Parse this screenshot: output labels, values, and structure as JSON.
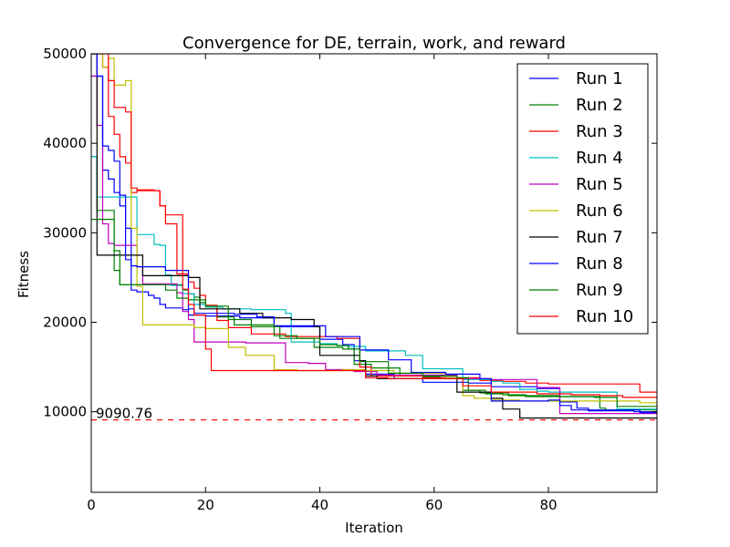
{
  "chart_data": {
    "type": "line",
    "title": "Convergence for DE, terrain, work, and reward",
    "xlabel": "Iteration",
    "ylabel": "Fitness",
    "xlim": [
      0,
      99
    ],
    "ylim": [
      1000,
      50000
    ],
    "xticks": [
      0,
      20,
      40,
      60,
      80
    ],
    "yticks": [
      10000,
      20000,
      30000,
      40000,
      50000
    ],
    "grid": false,
    "legend_position": "top-right",
    "reference_line": {
      "value": 9090.76,
      "label": "9090.76",
      "color": "#ff0000",
      "style": "dashed"
    },
    "series": [
      {
        "name": "Run 1",
        "color": "#0000ff",
        "points": [
          [
            0,
            47500
          ],
          [
            1,
            47500
          ],
          [
            2,
            37000
          ],
          [
            3,
            36000
          ],
          [
            4,
            34500
          ],
          [
            5,
            33000
          ],
          [
            6,
            30500
          ],
          [
            7,
            23600
          ],
          [
            8,
            23400
          ],
          [
            9,
            23400
          ],
          [
            10,
            23000
          ],
          [
            11,
            22700
          ],
          [
            12,
            22000
          ],
          [
            13,
            21600
          ],
          [
            16,
            21400
          ],
          [
            17,
            20800
          ],
          [
            20,
            20700
          ],
          [
            26,
            20500
          ],
          [
            32,
            19500
          ],
          [
            40,
            18100
          ],
          [
            44,
            17500
          ],
          [
            46,
            15700
          ],
          [
            48,
            14200
          ],
          [
            53,
            13700
          ],
          [
            58,
            13300
          ],
          [
            66,
            13200
          ],
          [
            70,
            12800
          ],
          [
            78,
            12600
          ],
          [
            82,
            11100
          ],
          [
            85,
            10400
          ],
          [
            87,
            10100
          ],
          [
            95,
            10000
          ],
          [
            99,
            10000
          ]
        ]
      },
      {
        "name": "Run 2",
        "color": "#008000",
        "points": [
          [
            0,
            38500
          ],
          [
            1,
            32500
          ],
          [
            4,
            25800
          ],
          [
            5,
            24200
          ],
          [
            16,
            23600
          ],
          [
            17,
            23200
          ],
          [
            18,
            22800
          ],
          [
            19,
            22200
          ],
          [
            20,
            21700
          ],
          [
            22,
            20600
          ],
          [
            25,
            19700
          ],
          [
            28,
            19500
          ],
          [
            33,
            18200
          ],
          [
            39,
            17200
          ],
          [
            44,
            17000
          ],
          [
            46,
            15300
          ],
          [
            49,
            14900
          ],
          [
            54,
            14000
          ],
          [
            58,
            13900
          ],
          [
            61,
            13800
          ],
          [
            63,
            13700
          ],
          [
            65,
            12400
          ],
          [
            68,
            12100
          ],
          [
            73,
            11800
          ],
          [
            82,
            11700
          ],
          [
            89,
            10400
          ],
          [
            90,
            10200
          ],
          [
            99,
            10200
          ]
        ]
      },
      {
        "name": "Run 3",
        "color": "#ff0000",
        "points": [
          [
            0,
            50000
          ],
          [
            2,
            48500
          ],
          [
            3,
            43000
          ],
          [
            4,
            41000
          ],
          [
            5,
            38500
          ],
          [
            6,
            37800
          ],
          [
            7,
            34500
          ],
          [
            8,
            34700
          ],
          [
            12,
            33000
          ],
          [
            13,
            31000
          ],
          [
            15,
            25400
          ],
          [
            17,
            24500
          ],
          [
            18,
            23800
          ],
          [
            19,
            23000
          ],
          [
            20,
            21900
          ],
          [
            22,
            20200
          ],
          [
            24,
            19400
          ],
          [
            28,
            18700
          ],
          [
            34,
            18400
          ],
          [
            43,
            18200
          ],
          [
            47,
            15000
          ],
          [
            49,
            14000
          ],
          [
            58,
            13800
          ],
          [
            68,
            13500
          ],
          [
            72,
            13400
          ],
          [
            76,
            13200
          ],
          [
            80,
            13100
          ],
          [
            96,
            12200
          ],
          [
            99,
            12200
          ]
        ]
      },
      {
        "name": "Run 4",
        "color": "#00bfbf",
        "points": [
          [
            0,
            38500
          ],
          [
            1,
            34000
          ],
          [
            7,
            34000
          ],
          [
            8,
            29800
          ],
          [
            10,
            29800
          ],
          [
            11,
            28700
          ],
          [
            12,
            28600
          ],
          [
            13,
            25300
          ],
          [
            14,
            24100
          ],
          [
            16,
            23200
          ],
          [
            18,
            22000
          ],
          [
            20,
            21700
          ],
          [
            23,
            21500
          ],
          [
            28,
            21400
          ],
          [
            34,
            21000
          ],
          [
            35,
            17800
          ],
          [
            40,
            17600
          ],
          [
            43,
            17400
          ],
          [
            45,
            17300
          ],
          [
            48,
            16800
          ],
          [
            55,
            16300
          ],
          [
            58,
            14800
          ],
          [
            65,
            13600
          ],
          [
            70,
            13400
          ],
          [
            72,
            13200
          ],
          [
            75,
            12500
          ],
          [
            78,
            12300
          ],
          [
            80,
            12200
          ],
          [
            92,
            10300
          ],
          [
            99,
            10300
          ]
        ]
      },
      {
        "name": "Run 5",
        "color": "#bf00bf",
        "points": [
          [
            0,
            47500
          ],
          [
            1,
            42000
          ],
          [
            2,
            31000
          ],
          [
            3,
            28800
          ],
          [
            4,
            28600
          ],
          [
            8,
            26200
          ],
          [
            9,
            24300
          ],
          [
            15,
            23300
          ],
          [
            16,
            21200
          ],
          [
            17,
            20300
          ],
          [
            18,
            17800
          ],
          [
            27,
            17700
          ],
          [
            34,
            15500
          ],
          [
            38,
            15400
          ],
          [
            41,
            14700
          ],
          [
            46,
            14500
          ],
          [
            50,
            14100
          ],
          [
            64,
            13700
          ],
          [
            70,
            13600
          ],
          [
            78,
            12700
          ],
          [
            82,
            9800
          ],
          [
            99,
            9800
          ]
        ]
      },
      {
        "name": "Run 6",
        "color": "#bfbf00",
        "points": [
          [
            0,
            50000
          ],
          [
            2,
            48500
          ],
          [
            3,
            49500
          ],
          [
            4,
            46500
          ],
          [
            6,
            47000
          ],
          [
            7,
            30500
          ],
          [
            8,
            24000
          ],
          [
            9,
            19700
          ],
          [
            18,
            19400
          ],
          [
            20,
            19300
          ],
          [
            24,
            17200
          ],
          [
            27,
            16300
          ],
          [
            32,
            14700
          ],
          [
            36,
            14600
          ],
          [
            44,
            14700
          ],
          [
            48,
            14600
          ],
          [
            53,
            14300
          ],
          [
            62,
            13800
          ],
          [
            65,
            11800
          ],
          [
            67,
            11500
          ],
          [
            70,
            11300
          ],
          [
            75,
            11200
          ],
          [
            96,
            11000
          ],
          [
            99,
            11000
          ]
        ]
      },
      {
        "name": "Run 7",
        "color": "#000000",
        "points": [
          [
            0,
            50000
          ],
          [
            1,
            27500
          ],
          [
            8,
            27500
          ],
          [
            9,
            25200
          ],
          [
            10,
            25200
          ],
          [
            17,
            25000
          ],
          [
            19,
            21500
          ],
          [
            26,
            21000
          ],
          [
            30,
            20500
          ],
          [
            35,
            20300
          ],
          [
            39,
            19500
          ],
          [
            40,
            16300
          ],
          [
            47,
            15700
          ],
          [
            48,
            14000
          ],
          [
            50,
            13700
          ],
          [
            57,
            13700
          ],
          [
            64,
            12200
          ],
          [
            70,
            11500
          ],
          [
            72,
            10300
          ],
          [
            75,
            9300
          ],
          [
            80,
            9300
          ],
          [
            99,
            9300
          ]
        ]
      },
      {
        "name": "Run 8",
        "color": "#0000ff",
        "points": [
          [
            0,
            50000
          ],
          [
            1,
            47500
          ],
          [
            2,
            39700
          ],
          [
            3,
            39200
          ],
          [
            4,
            38000
          ],
          [
            5,
            34200
          ],
          [
            6,
            27000
          ],
          [
            7,
            26300
          ],
          [
            8,
            26200
          ],
          [
            13,
            25800
          ],
          [
            17,
            21500
          ],
          [
            18,
            21000
          ],
          [
            25,
            20900
          ],
          [
            29,
            20600
          ],
          [
            32,
            19600
          ],
          [
            41,
            18400
          ],
          [
            47,
            16900
          ],
          [
            52,
            15800
          ],
          [
            56,
            14400
          ],
          [
            62,
            14200
          ],
          [
            68,
            13700
          ],
          [
            70,
            11200
          ],
          [
            80,
            11300
          ],
          [
            82,
            10700
          ],
          [
            84,
            10200
          ],
          [
            96,
            9900
          ],
          [
            99,
            9900
          ]
        ]
      },
      {
        "name": "Run 9",
        "color": "#008000",
        "points": [
          [
            0,
            31500
          ],
          [
            3,
            31500
          ],
          [
            4,
            28000
          ],
          [
            5,
            24200
          ],
          [
            9,
            24200
          ],
          [
            11,
            24200
          ],
          [
            13,
            23600
          ],
          [
            15,
            22700
          ],
          [
            17,
            22500
          ],
          [
            20,
            21800
          ],
          [
            24,
            20300
          ],
          [
            28,
            19700
          ],
          [
            32,
            18500
          ],
          [
            36,
            18200
          ],
          [
            40,
            17500
          ],
          [
            43,
            17400
          ],
          [
            45,
            17000
          ],
          [
            47,
            15600
          ],
          [
            52,
            14300
          ],
          [
            58,
            14000
          ],
          [
            64,
            13800
          ],
          [
            66,
            12400
          ],
          [
            69,
            12000
          ],
          [
            72,
            11900
          ],
          [
            76,
            11700
          ],
          [
            84,
            11700
          ],
          [
            88,
            11600
          ],
          [
            92,
            10600
          ],
          [
            99,
            10600
          ]
        ]
      },
      {
        "name": "Run 10",
        "color": "#ff0000",
        "points": [
          [
            0,
            50000
          ],
          [
            2,
            50000
          ],
          [
            3,
            47000
          ],
          [
            4,
            44000
          ],
          [
            6,
            43500
          ],
          [
            7,
            35000
          ],
          [
            8,
            34800
          ],
          [
            11,
            34700
          ],
          [
            12,
            33000
          ],
          [
            13,
            32000
          ],
          [
            16,
            23700
          ],
          [
            17,
            22000
          ],
          [
            18,
            20800
          ],
          [
            20,
            17000
          ],
          [
            21,
            14600
          ],
          [
            35,
            14600
          ],
          [
            44,
            14600
          ],
          [
            48,
            13800
          ],
          [
            52,
            13700
          ],
          [
            57,
            13700
          ],
          [
            65,
            12900
          ],
          [
            70,
            12200
          ],
          [
            78,
            12000
          ],
          [
            84,
            11900
          ],
          [
            89,
            11800
          ],
          [
            93,
            11600
          ],
          [
            97,
            11600
          ],
          [
            99,
            11500
          ]
        ]
      }
    ]
  }
}
